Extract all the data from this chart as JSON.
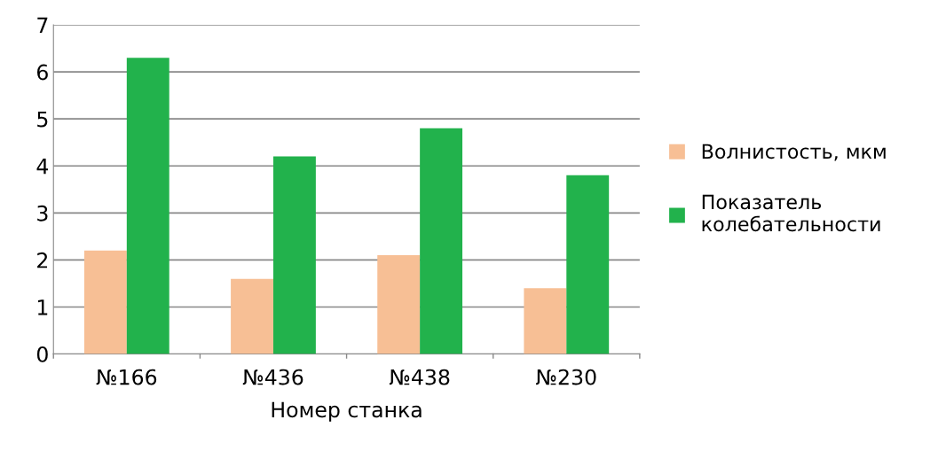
{
  "chart_data": {
    "type": "bar",
    "xlabel": "Номер станка",
    "categories": [
      "№166",
      "№436",
      "№438",
      "№230"
    ],
    "series": [
      {
        "name": "Волнистость, мкм",
        "color": "#f7bf95",
        "values": [
          2.2,
          1.6,
          2.1,
          1.4
        ]
      },
      {
        "name": "Показатель\nколебательности",
        "color": "#22b24c",
        "values": [
          6.3,
          4.2,
          4.8,
          3.8
        ]
      }
    ],
    "ylim": [
      0,
      7
    ],
    "yticks": [
      0,
      1,
      2,
      3,
      4,
      5,
      6,
      7
    ],
    "grid": "y",
    "legend": "right"
  }
}
